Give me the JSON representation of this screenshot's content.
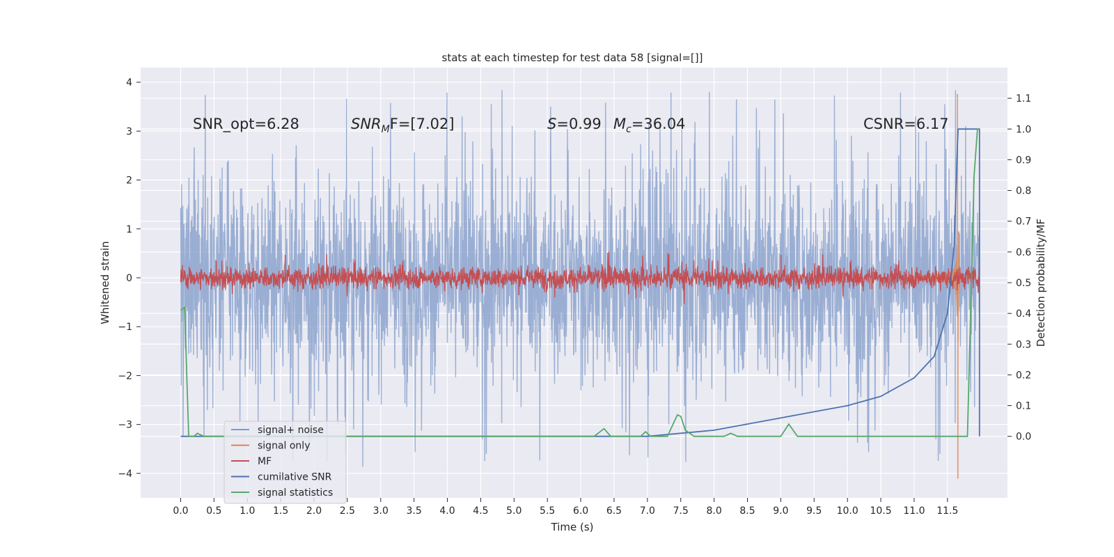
{
  "chart_data": {
    "type": "line",
    "title": "stats at each timestep for test data 58 [signal=[]]",
    "xlabel": "Time (s)",
    "ylabel_left": "Whitened strain",
    "ylabel_right": "Detection probability/MF",
    "xlim": [
      -0.6,
      12.4
    ],
    "ylim_left": [
      -4.5,
      4.3
    ],
    "ylim_right": [
      -0.2,
      1.2
    ],
    "x_ticks": [
      "0.0",
      "0.5",
      "1.0",
      "1.5",
      "2.0",
      "2.5",
      "3.0",
      "3.5",
      "4.0",
      "4.5",
      "5.0",
      "5.5",
      "6.0",
      "6.5",
      "7.0",
      "7.5",
      "8.0",
      "8.5",
      "9.0",
      "9.5",
      "10.0",
      "10.5",
      "11.0",
      "11.5"
    ],
    "y_ticks_left": [
      "4",
      "3",
      "2",
      "1",
      "0",
      "−1",
      "−2",
      "−3",
      "−4"
    ],
    "y_ticks_right": [
      "1.1",
      "1.0",
      "0.9",
      "0.8",
      "0.7",
      "0.6",
      "0.5",
      "0.4",
      "0.3",
      "0.2",
      "0.1",
      "0.0"
    ],
    "grid": true,
    "legend_position": "lower-left",
    "annotations": {
      "snr_opt": "SNR_opt=6.28",
      "snr_mf_base": "SNR",
      "snr_mf_sub": "M",
      "snr_mf_rest": "F=[7.02]",
      "s_stat_var": "S",
      "s_stat_val": "=0.99",
      "mc_var": "M",
      "mc_sub": "c",
      "mc_val": "=36.04",
      "csnr": "CSNR=6.17"
    },
    "series": [
      {
        "name": "signal+ noise",
        "color": "#7f9ac8",
        "axis": "left",
        "description": "whitened noisy strain, roughly ±1.8 with spikes to ±3.9",
        "amplitude_typical": 1.8,
        "amplitude_peak": 3.9,
        "x_range": [
          0.0,
          11.98
        ]
      },
      {
        "name": "signal only",
        "color": "#dd8452",
        "axis": "left",
        "description": "chirp waveform growing toward merger",
        "peak_time": 11.65,
        "peak_max": 3.75,
        "peak_min": -4.1
      },
      {
        "name": "MF",
        "color": "#c44e52",
        "axis": "left",
        "description": "matched-filter output around 0, about ±0.25",
        "amplitude_typical": 0.25
      },
      {
        "name": "cumilative SNR",
        "color": "#4c72b0",
        "axis": "right",
        "x": [
          0.0,
          6.0,
          7.0,
          8.0,
          9.0,
          9.5,
          10.0,
          10.5,
          11.0,
          11.3,
          11.5,
          11.6,
          11.65,
          11.66,
          11.98,
          11.98
        ],
        "y": [
          0.0,
          0.0,
          0.0,
          0.02,
          0.06,
          0.08,
          0.1,
          0.13,
          0.19,
          0.26,
          0.4,
          0.62,
          0.95,
          1.0,
          1.0,
          0.0
        ]
      },
      {
        "name": "signal statistics",
        "color": "#55a868",
        "axis": "right",
        "x": [
          0.0,
          0.06,
          0.12,
          0.2,
          0.25,
          0.35,
          0.5,
          6.2,
          6.35,
          6.45,
          6.9,
          6.97,
          7.05,
          7.3,
          7.45,
          7.5,
          7.57,
          7.7,
          8.15,
          8.25,
          8.35,
          9.0,
          9.12,
          9.25,
          11.8,
          11.9,
          11.95,
          11.98
        ],
        "y": [
          0.41,
          0.42,
          0.0,
          0.0,
          0.01,
          0.0,
          0.0,
          0.0,
          0.025,
          0.0,
          0.0,
          0.015,
          0.0,
          0.0,
          0.07,
          0.065,
          0.02,
          0.0,
          0.0,
          0.01,
          0.0,
          0.0,
          0.04,
          0.0,
          0.0,
          0.85,
          1.0,
          1.0
        ]
      }
    ]
  }
}
